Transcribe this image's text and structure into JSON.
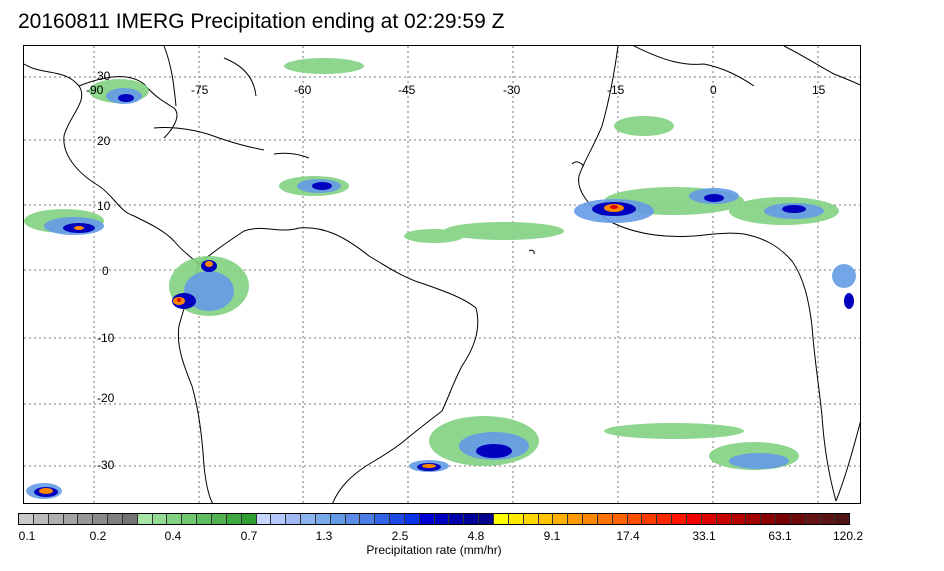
{
  "title": "20160811 IMERG Precipitation ending at 02:29:59 Z",
  "map": {
    "lon_ticks": [
      "-90",
      "-75",
      "-60",
      "-45",
      "-30",
      "-15",
      "0",
      "15"
    ],
    "lat_ticks": [
      "30",
      "20",
      "10",
      "0",
      "-10",
      "-20",
      "-30"
    ],
    "gridlines": true,
    "gridline_style": "dotted",
    "land_outline_color": "#000000"
  },
  "colorbar": {
    "title": "Precipitation rate (mm/hr)",
    "labels": [
      "0.1",
      "0.2",
      "0.4",
      "0.7",
      "1.3",
      "2.5",
      "4.8",
      "9.1",
      "17.4",
      "33.1",
      "63.1",
      "120.2"
    ],
    "colors": [
      "#c8c8c8",
      "#bbbbbb",
      "#afafaf",
      "#a3a3a3",
      "#979797",
      "#8b8b8b",
      "#7f7f7f",
      "#737373",
      "#a6e6a6",
      "#94dc94",
      "#82d282",
      "#70c870",
      "#60bd60",
      "#50b250",
      "#40a840",
      "#309e30",
      "#c8d7ff",
      "#b4c8ff",
      "#a0b9f5",
      "#8cb4f0",
      "#78aaeb",
      "#649be6",
      "#5a8ce6",
      "#4b7de6",
      "#3264e6",
      "#1e4be6",
      "#0a32e6",
      "#0000d2",
      "#0000be",
      "#0000aa",
      "#00009a",
      "#00008c",
      "#ffff00",
      "#ffeb00",
      "#ffd700",
      "#ffc300",
      "#ffaf00",
      "#ff9b00",
      "#ff8700",
      "#ff7300",
      "#ff6400",
      "#ff5000",
      "#ff3c00",
      "#ff2800",
      "#ff1400",
      "#f00000",
      "#dc0000",
      "#c80000",
      "#b40000",
      "#a00000",
      "#8c0000",
      "#780000",
      "#6e0a0a",
      "#641414",
      "#5a1414",
      "#501414"
    ]
  }
}
